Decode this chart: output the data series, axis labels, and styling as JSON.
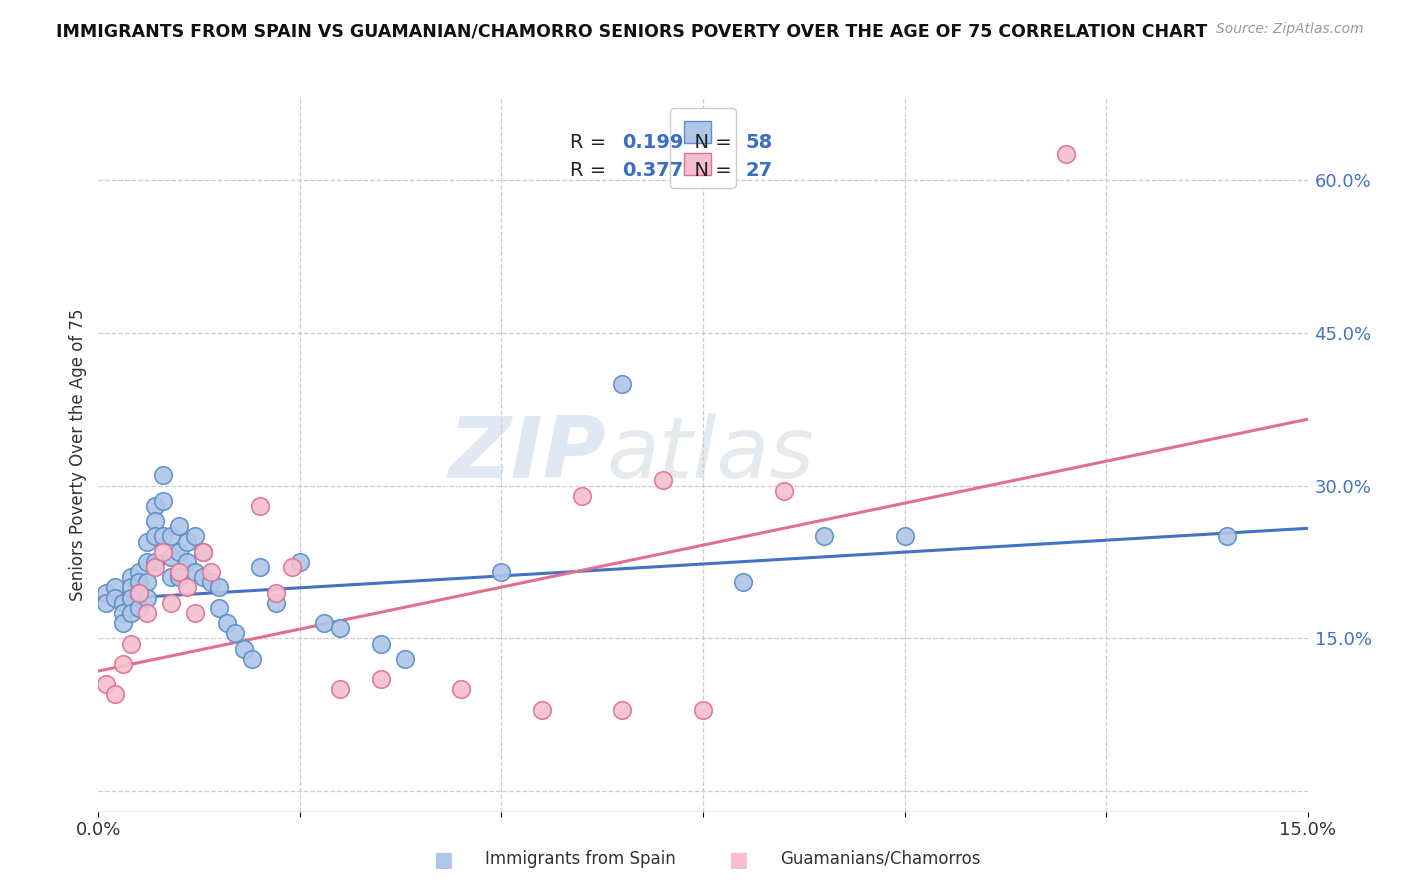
{
  "title": "IMMIGRANTS FROM SPAIN VS GUAMANIAN/CHAMORRO SENIORS POVERTY OVER THE AGE OF 75 CORRELATION CHART",
  "source": "Source: ZipAtlas.com",
  "ylabel": "Seniors Poverty Over the Age of 75",
  "right_yticks": [
    0.0,
    0.15,
    0.3,
    0.45,
    0.6
  ],
  "right_yticklabels": [
    "",
    "15.0%",
    "30.0%",
    "45.0%",
    "60.0%"
  ],
  "xmin": 0.0,
  "xmax": 0.15,
  "ymin": -0.02,
  "ymax": 0.68,
  "blue_R": 0.199,
  "blue_N": 58,
  "pink_R": 0.377,
  "pink_N": 27,
  "blue_color": "#aec6e8",
  "blue_edge_color": "#5b8ec4",
  "pink_color": "#f5bfd0",
  "pink_edge_color": "#e07090",
  "blue_line_color": "#4472c4",
  "pink_line_color": "#e07090",
  "watermark_zip": "ZIP",
  "watermark_atlas": "atlas",
  "legend_label_blue": "Immigrants from Spain",
  "legend_label_pink": "Guamanians/Chamorros",
  "blue_scatter_x": [
    0.001,
    0.001,
    0.002,
    0.002,
    0.003,
    0.003,
    0.003,
    0.004,
    0.004,
    0.004,
    0.004,
    0.005,
    0.005,
    0.005,
    0.005,
    0.006,
    0.006,
    0.006,
    0.006,
    0.007,
    0.007,
    0.007,
    0.007,
    0.008,
    0.008,
    0.008,
    0.009,
    0.009,
    0.009,
    0.01,
    0.01,
    0.01,
    0.011,
    0.011,
    0.012,
    0.012,
    0.013,
    0.013,
    0.014,
    0.015,
    0.015,
    0.016,
    0.017,
    0.018,
    0.019,
    0.02,
    0.022,
    0.025,
    0.028,
    0.03,
    0.035,
    0.038,
    0.05,
    0.065,
    0.08,
    0.09,
    0.1,
    0.14
  ],
  "blue_scatter_y": [
    0.195,
    0.185,
    0.2,
    0.19,
    0.185,
    0.175,
    0.165,
    0.21,
    0.2,
    0.19,
    0.175,
    0.215,
    0.205,
    0.195,
    0.18,
    0.245,
    0.225,
    0.205,
    0.19,
    0.28,
    0.265,
    0.25,
    0.225,
    0.31,
    0.285,
    0.25,
    0.25,
    0.23,
    0.21,
    0.26,
    0.235,
    0.21,
    0.245,
    0.225,
    0.25,
    0.215,
    0.235,
    0.21,
    0.205,
    0.2,
    0.18,
    0.165,
    0.155,
    0.14,
    0.13,
    0.22,
    0.185,
    0.225,
    0.165,
    0.16,
    0.145,
    0.13,
    0.215,
    0.4,
    0.205,
    0.25,
    0.25,
    0.25
  ],
  "pink_scatter_x": [
    0.001,
    0.002,
    0.003,
    0.004,
    0.005,
    0.006,
    0.007,
    0.008,
    0.009,
    0.01,
    0.011,
    0.012,
    0.013,
    0.014,
    0.02,
    0.022,
    0.024,
    0.03,
    0.035,
    0.045,
    0.055,
    0.06,
    0.065,
    0.07,
    0.075,
    0.085,
    0.12
  ],
  "pink_scatter_y": [
    0.105,
    0.095,
    0.125,
    0.145,
    0.195,
    0.175,
    0.22,
    0.235,
    0.185,
    0.215,
    0.2,
    0.175,
    0.235,
    0.215,
    0.28,
    0.195,
    0.22,
    0.1,
    0.11,
    0.1,
    0.08,
    0.29,
    0.08,
    0.305,
    0.08,
    0.295,
    0.625
  ],
  "blue_trend_x": [
    0.0,
    0.15
  ],
  "blue_trend_y": [
    0.188,
    0.258
  ],
  "pink_trend_x": [
    0.0,
    0.15
  ],
  "pink_trend_y": [
    0.118,
    0.365
  ]
}
